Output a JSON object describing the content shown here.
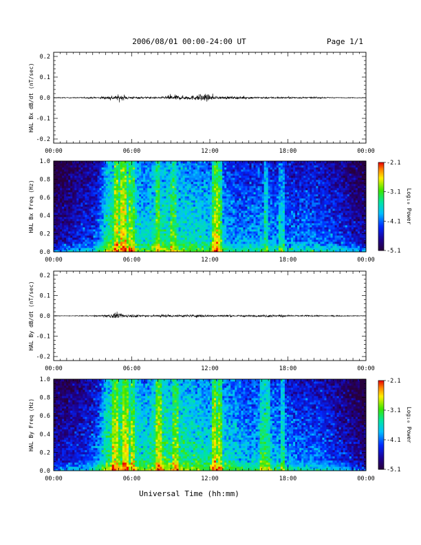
{
  "header": {
    "title": "2006/08/01   00:00-24:00 UT",
    "page": "Page 1/1"
  },
  "xlabel": "Universal Time (hh:mm)",
  "colorbar": {
    "label": "Log₁₀ Power",
    "ticks": [
      "-2.1",
      "-3.1",
      "-4.1",
      "-5.1"
    ],
    "range": [
      -5.1,
      -2.1
    ],
    "colormap": "rainbow"
  },
  "chart_data": [
    {
      "type": "line",
      "ylabel": "HAL Bx dB/dt (nT/sec)",
      "xlim": [
        0,
        24
      ],
      "ylim": [
        -0.22,
        0.22
      ],
      "xticks": [
        "00:00",
        "06:00",
        "12:00",
        "18:00",
        "00:00"
      ],
      "yticks": [
        "0.2",
        "0.1",
        "0.0",
        "-0.1",
        "-0.2"
      ],
      "envelope": {
        "hours": [
          0,
          2,
          3.5,
          4,
          5,
          5.5,
          6,
          7,
          8.5,
          9,
          10,
          11,
          11.5,
          12,
          12.5,
          14,
          16,
          18,
          20,
          21,
          22,
          24
        ],
        "amplitude": [
          0.002,
          0.003,
          0.005,
          0.01,
          0.016,
          0.012,
          0.008,
          0.006,
          0.006,
          0.018,
          0.012,
          0.015,
          0.03,
          0.014,
          0.009,
          0.008,
          0.006,
          0.005,
          0.004,
          0.003,
          0.002,
          0.002
        ]
      }
    },
    {
      "type": "heatmap",
      "ylabel": "HAL Bx Freq (Hz)",
      "xlim": [
        0,
        24
      ],
      "ylim": [
        0,
        1.0
      ],
      "xticks": [
        "00:00",
        "06:00",
        "12:00",
        "18:00",
        "00:00"
      ],
      "yticks": [
        "1.0",
        "0.8",
        "0.6",
        "0.4",
        "0.2",
        "0.0"
      ],
      "zlim": [
        -5.1,
        -2.1
      ],
      "log_power_profile": {
        "hours": [
          0,
          1,
          2,
          3,
          3.5,
          4,
          5,
          5.5,
          6,
          7,
          8,
          9,
          10,
          11,
          12,
          12.5,
          13,
          14,
          15,
          16,
          17,
          18,
          19,
          20,
          21,
          22,
          23,
          24
        ],
        "level": [
          -4.7,
          -4.5,
          -4.3,
          -4.2,
          -4.0,
          -3.4,
          -3.0,
          -3.0,
          -3.3,
          -3.6,
          -3.3,
          -3.4,
          -3.5,
          -3.5,
          -3.6,
          -3.0,
          -3.7,
          -3.9,
          -3.9,
          -3.8,
          -3.9,
          -4.0,
          -4.0,
          -4.0,
          -4.1,
          -4.2,
          -4.4,
          -4.6
        ]
      },
      "vertical_bands_hours": [
        4.8,
        5.3,
        6.0,
        8.0,
        9.2,
        12.3,
        12.7,
        16.3,
        17.5
      ]
    },
    {
      "type": "line",
      "ylabel": "HAL By dB/dt (nT/sec)",
      "xlim": [
        0,
        24
      ],
      "ylim": [
        -0.22,
        0.22
      ],
      "xticks": [
        "00:00",
        "06:00",
        "12:00",
        "18:00",
        "00:00"
      ],
      "yticks": [
        "0.2",
        "0.1",
        "0.0",
        "-0.1",
        "-0.2"
      ],
      "envelope": {
        "hours": [
          0,
          2,
          3.5,
          4,
          4.8,
          5.2,
          6,
          7,
          8,
          8.3,
          9,
          10,
          12,
          14,
          16,
          16.5,
          18,
          20,
          22,
          24
        ],
        "amplitude": [
          0.002,
          0.002,
          0.004,
          0.008,
          0.018,
          0.012,
          0.009,
          0.007,
          0.006,
          0.011,
          0.007,
          0.008,
          0.007,
          0.006,
          0.006,
          0.01,
          0.005,
          0.004,
          0.003,
          0.002
        ]
      }
    },
    {
      "type": "heatmap",
      "ylabel": "HAL By Freq (Hz)",
      "xlim": [
        0,
        24
      ],
      "ylim": [
        0,
        1.0
      ],
      "xticks": [
        "00:00",
        "06:00",
        "12:00",
        "18:00",
        "00:00"
      ],
      "yticks": [
        "1.0",
        "0.8",
        "0.6",
        "0.4",
        "0.2",
        "0.0"
      ],
      "zlim": [
        -5.1,
        -2.1
      ],
      "log_power_profile": {
        "hours": [
          0,
          1,
          2,
          3,
          3.5,
          4,
          5,
          5.5,
          6,
          7,
          8,
          9,
          10,
          11,
          12,
          12.5,
          13,
          14,
          15,
          16,
          17,
          18,
          19,
          20,
          21,
          22,
          23,
          24
        ],
        "level": [
          -4.5,
          -4.4,
          -4.3,
          -4.1,
          -3.9,
          -3.3,
          -3.0,
          -3.0,
          -3.2,
          -3.5,
          -3.1,
          -3.3,
          -3.3,
          -3.4,
          -3.5,
          -2.9,
          -3.5,
          -3.6,
          -3.8,
          -3.6,
          -3.7,
          -3.9,
          -4.0,
          -4.0,
          -4.1,
          -4.3,
          -4.5,
          -4.7
        ]
      },
      "vertical_bands_hours": [
        4.7,
        5.5,
        6.1,
        8.1,
        9.3,
        12.3,
        12.8,
        16.0,
        16.4,
        17.6
      ]
    }
  ]
}
